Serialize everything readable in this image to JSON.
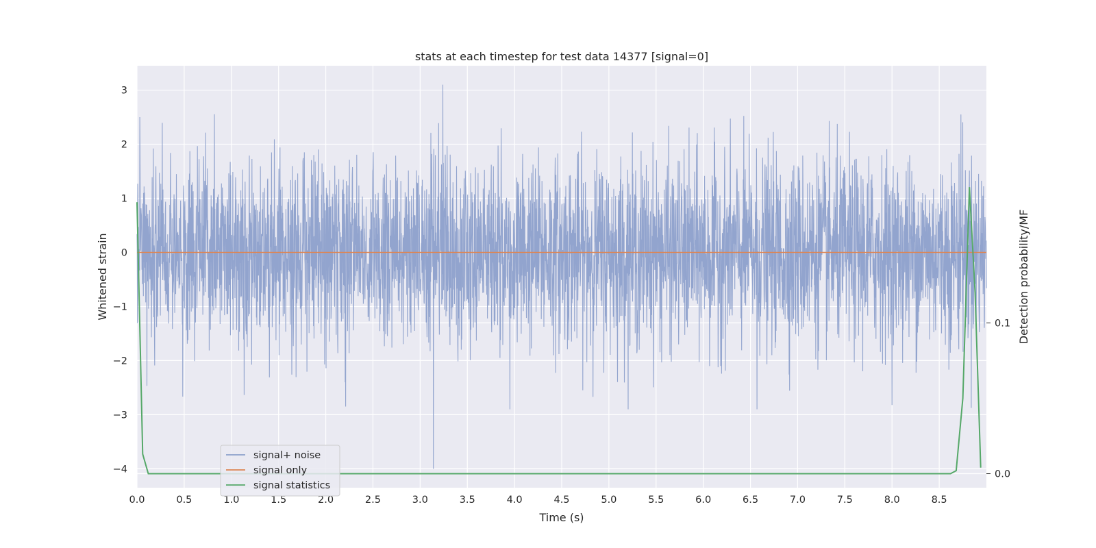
{
  "chart_data": {
    "type": "line",
    "title": "stats at each timestep for test data 14377 [signal=0]",
    "xlabel": "Time (s)",
    "ylabel": "Whitened strain",
    "y2label": "Detection probability/MF",
    "xlim": [
      0.0,
      9.0
    ],
    "ylim": [
      -4.35,
      3.45
    ],
    "y2lim": [
      -0.0093,
      0.2705
    ],
    "xticks": [
      "0.0",
      "0.5",
      "1.0",
      "1.5",
      "2.0",
      "2.5",
      "3.0",
      "3.5",
      "4.0",
      "4.5",
      "5.0",
      "5.5",
      "6.0",
      "6.5",
      "7.0",
      "7.5",
      "8.0",
      "8.5"
    ],
    "yticks": [
      "3",
      "2",
      "1",
      "0",
      "−1",
      "−2",
      "−3",
      "−4"
    ],
    "y2ticks": [
      "0.1",
      "0.0"
    ],
    "grid": true,
    "legend_position": "lower-left",
    "series": [
      {
        "name": "signal+ noise",
        "axis": "left",
        "color": "#8da0cb",
        "description": "noise, amplitude approx ±2.5 peaking to 3.1 and -4.0",
        "peak_max": 3.1,
        "peak_min": -4.0,
        "typical_abs": 1.6
      },
      {
        "name": "signal only",
        "axis": "left",
        "color": "#dd8452",
        "x": [
          0.0,
          9.0
        ],
        "y": [
          0.0,
          0.0
        ]
      },
      {
        "name": "signal statistics",
        "axis": "right",
        "color": "#55a868",
        "x": [
          0.0,
          0.06,
          0.12,
          0.2,
          0.5,
          1.0,
          2.0,
          3.0,
          4.0,
          5.0,
          6.0,
          7.0,
          8.0,
          8.5,
          8.62,
          8.68,
          8.75,
          8.82,
          8.88,
          8.94
        ],
        "y": [
          0.18,
          0.013,
          0.0,
          0.0,
          0.0,
          0.0,
          0.0,
          0.0,
          0.0,
          0.0,
          0.0,
          0.0,
          0.0,
          0.0,
          0.0,
          0.002,
          0.05,
          0.19,
          0.12,
          0.004
        ]
      }
    ]
  }
}
